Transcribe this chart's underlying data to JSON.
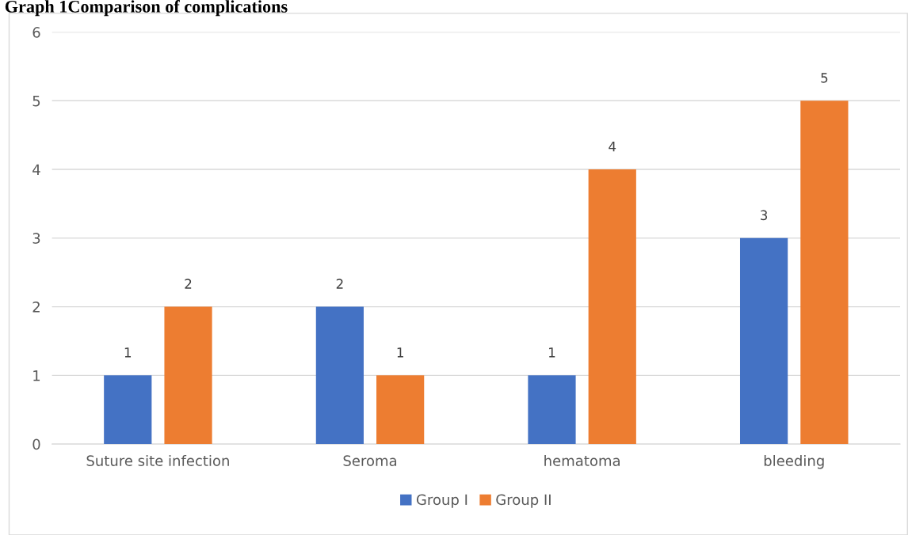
{
  "chart_data": {
    "type": "bar",
    "title": "Graph 1Comparison of complications",
    "categories": [
      "Suture site infection",
      "Seroma",
      "hematoma",
      "bleeding"
    ],
    "series": [
      {
        "name": "Group I",
        "color": "#4472c4",
        "values": [
          1,
          2,
          1,
          3
        ]
      },
      {
        "name": "Group II",
        "color": "#ed7d31",
        "values": [
          2,
          1,
          4,
          5
        ]
      }
    ],
    "ylim": [
      0,
      6
    ],
    "yticks": [
      0,
      1,
      2,
      3,
      4,
      5,
      6
    ],
    "grid": "y",
    "legend": "bottom",
    "data_labels": true
  }
}
